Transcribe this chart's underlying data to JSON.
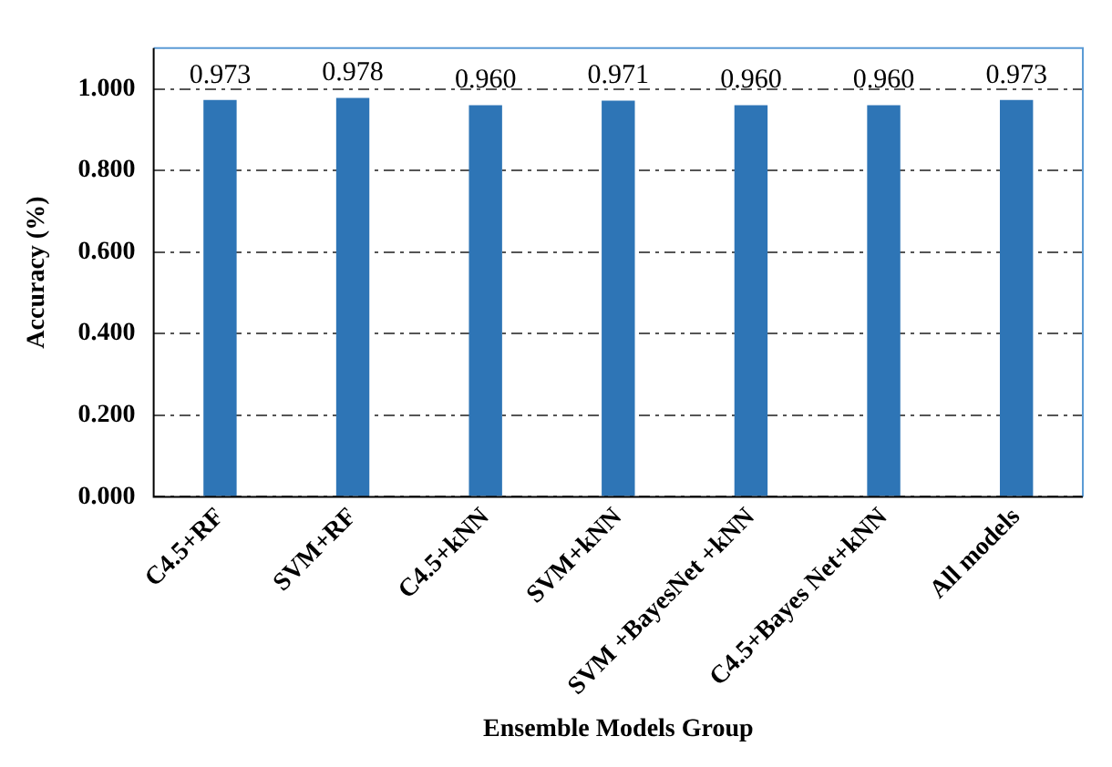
{
  "chart_data": {
    "type": "bar",
    "xlabel": "Ensemble Models Group",
    "ylabel": "Accuracy (%)",
    "categories": [
      "C4.5+RF",
      "SVM+RF",
      "C4.5+kNN",
      "SVM+kNN",
      "SVM +BayesNet +kNN",
      "C4.5+Bayes Net+kNN",
      "All models"
    ],
    "values": [
      0.973,
      0.978,
      0.96,
      0.971,
      0.96,
      0.96,
      0.973
    ],
    "value_labels": [
      "0.973",
      "0.978",
      "0.960",
      "0.971",
      "0.960",
      "0.960",
      "0.973"
    ],
    "color": "#2e75b6",
    "ylim": [
      0,
      1.1
    ],
    "yticks": [
      {
        "value": 0,
        "label": "0.000"
      },
      {
        "value": 0.2,
        "label": "0.200"
      },
      {
        "value": 0.4,
        "label": "0.400"
      },
      {
        "value": 0.6,
        "label": "0.600"
      },
      {
        "value": 0.8,
        "label": "0.800"
      },
      {
        "value": 1,
        "label": "1.000"
      }
    ],
    "grid": "y",
    "legend": false
  }
}
